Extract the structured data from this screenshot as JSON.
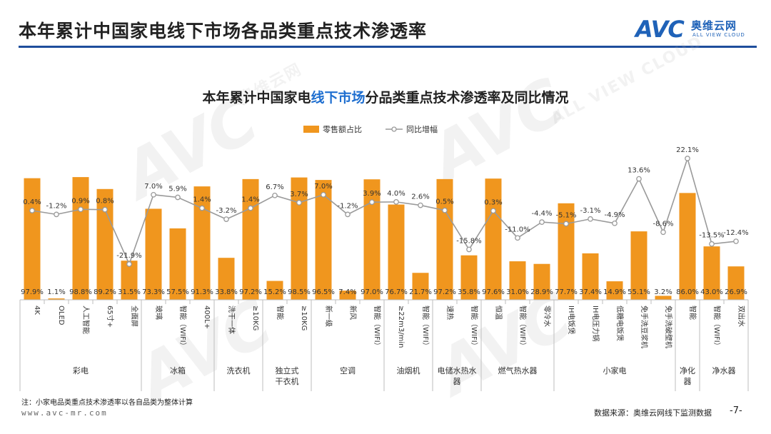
{
  "page": {
    "title": "本年累计中国家电线下市场各品类重点技术渗透率",
    "chart_title_a": "本年累计中国家电",
    "chart_title_b": "线下市场",
    "chart_title_c": "分品类重点技术渗透率及同比情况",
    "note": "注：小家电品类重点技术渗透率以各自品类为整体计算",
    "url": "www.avc-mr.com",
    "source": "数据来源：奥维云网线下监测数据",
    "page_number": "-7-",
    "logo_mark": "AVC",
    "logo_cn": "奥维云网",
    "logo_en": "ALL VIEW CLOUD",
    "accent_color": "#1f4e9c",
    "bar_color": "#f0961e",
    "line_color": "#9a9a9a"
  },
  "chart_data": {
    "type": "bar",
    "legend_position": "top-center",
    "series": [
      {
        "name": "零售额占比",
        "type": "bar",
        "values": [
          97.9,
          1.1,
          98.8,
          89.2,
          31.5,
          73.3,
          57.5,
          91.3,
          33.8,
          97.2,
          15.2,
          98.5,
          96.5,
          7.4,
          97.0,
          76.7,
          21.7,
          97.2,
          35.8,
          97.6,
          31.0,
          28.9,
          77.7,
          37.4,
          14.9,
          55.1,
          3.2,
          86.0,
          43.0,
          26.9
        ],
        "labels": [
          "97.9%",
          "1.1%",
          "98.8%",
          "89.2%",
          "31.5%",
          "73.3%",
          "57.5%",
          "91.3%",
          "33.8%",
          "97.2%",
          "15.2%",
          "98.5%",
          "96.5%",
          "7.4%",
          "97.0%",
          "76.7%",
          "21.7%",
          "97.2%",
          "35.8%",
          "97.6%",
          "31.0%",
          "28.9%",
          "77.7%",
          "37.4%",
          "14.9%",
          "55.1%",
          "3.2%",
          "86.0%",
          "43.0%",
          "26.9%"
        ]
      },
      {
        "name": "同比增幅",
        "type": "line",
        "values": [
          0.4,
          -1.2,
          0.9,
          0.8,
          -21.9,
          7.0,
          5.9,
          1.4,
          -3.2,
          1.4,
          6.7,
          3.7,
          7.0,
          -1.2,
          3.9,
          4.0,
          2.6,
          0.5,
          -15.8,
          0.3,
          -11.0,
          -4.4,
          -5.1,
          -3.1,
          -4.9,
          13.6,
          -8.6,
          22.1,
          -13.5,
          -12.4
        ],
        "labels": [
          "0.4%",
          "-1.2%",
          "0.9%",
          "0.8%",
          "-21.9%",
          "7.0%",
          "5.9%",
          "1.4%",
          "-3.2%",
          "1.4%",
          "6.7%",
          "3.7%",
          "7.0%",
          "-1.2%",
          "3.9%",
          "4.0%",
          "2.6%",
          "0.5%",
          "-15.8%",
          "0.3%",
          "-11.0%",
          "-4.4%",
          "-5.1%",
          "-3.1%",
          "-4.9%",
          "13.6%",
          "-8.6%",
          "22.1%",
          "-13.5%",
          "-12.4%"
        ]
      }
    ],
    "categories": [
      "4K",
      "OLED",
      "人工智能",
      "65寸+",
      "全面屏",
      "玻璃",
      "智能（WIFI）",
      "400L+",
      "洗干一体",
      "≥10KG",
      "智能",
      "≥10KG",
      "新一级",
      "新风",
      "智能（WIFI）",
      "≥22m3/min",
      "智能（WIFI）",
      "速热",
      "智能（WIFI）",
      "恒温",
      "智能（WIFI）",
      "零冷水",
      "IH电饭煲",
      "IH电压力锅",
      "低糖电饭煲",
      "免手洗豆浆机",
      "免手洗破壁机",
      "智能",
      "智能（WIFI）",
      "双出水"
    ],
    "groups": [
      {
        "name": "彩电",
        "size": 5
      },
      {
        "name": "冰箱",
        "size": 3
      },
      {
        "name": "洗衣机",
        "size": 2
      },
      {
        "name": "独立式干衣机",
        "size": 2
      },
      {
        "name": "空调",
        "size": 3
      },
      {
        "name": "油烟机",
        "size": 2
      },
      {
        "name": "电储水热水器",
        "size": 2
      },
      {
        "name": "燃气热水器",
        "size": 3
      },
      {
        "name": "小家电",
        "size": 5
      },
      {
        "name": "净化器",
        "size": 1
      },
      {
        "name": "净水器",
        "size": 2
      }
    ],
    "ylim_bar": [
      0,
      100
    ],
    "ylim_line": [
      -60,
      25
    ],
    "grid": false
  }
}
